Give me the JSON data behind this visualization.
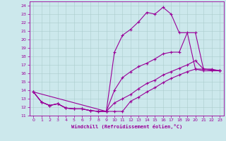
{
  "xlabel": "Windchill (Refroidissement éolien,°C)",
  "background_color": "#cce8ec",
  "grid_color": "#aacccc",
  "line_color": "#990099",
  "xlim": [
    -0.5,
    23.5
  ],
  "ylim": [
    11,
    24.5
  ],
  "xticks": [
    0,
    1,
    2,
    3,
    4,
    5,
    6,
    7,
    8,
    9,
    10,
    11,
    12,
    13,
    14,
    15,
    16,
    17,
    18,
    19,
    20,
    21,
    22,
    23
  ],
  "yticks": [
    11,
    12,
    13,
    14,
    15,
    16,
    17,
    18,
    19,
    20,
    21,
    22,
    23,
    24
  ],
  "curve1_x": [
    0,
    1,
    2,
    3,
    4,
    5,
    6,
    7,
    8,
    9,
    10,
    11,
    12,
    13,
    14,
    15,
    16,
    17,
    18,
    19,
    20,
    21,
    22,
    23
  ],
  "curve1_y": [
    13.8,
    12.6,
    12.2,
    12.4,
    11.9,
    11.8,
    11.8,
    11.6,
    11.5,
    11.5,
    11.5,
    11.5,
    12.7,
    13.2,
    13.8,
    14.3,
    14.9,
    15.4,
    15.8,
    16.2,
    16.5,
    16.3,
    16.3,
    16.3
  ],
  "curve2_x": [
    0,
    1,
    2,
    3,
    4,
    5,
    6,
    7,
    8,
    9,
    10,
    11,
    12,
    13,
    14,
    15,
    16,
    17,
    18,
    19,
    20,
    21,
    22,
    23
  ],
  "curve2_y": [
    13.8,
    12.6,
    12.2,
    12.4,
    11.9,
    11.8,
    11.8,
    11.6,
    11.5,
    11.5,
    12.5,
    13.0,
    13.5,
    14.2,
    14.8,
    15.2,
    15.8,
    16.2,
    16.6,
    17.0,
    17.5,
    16.5,
    16.4,
    16.3
  ],
  "curve3_x": [
    0,
    1,
    2,
    3,
    4,
    5,
    6,
    7,
    8,
    9,
    10,
    11,
    12,
    13,
    14,
    15,
    16,
    17,
    18,
    19,
    20,
    21,
    22,
    23
  ],
  "curve3_y": [
    13.8,
    12.6,
    12.2,
    12.4,
    11.9,
    11.8,
    11.8,
    11.6,
    11.5,
    11.5,
    14.0,
    15.5,
    16.2,
    16.8,
    17.2,
    17.7,
    18.3,
    18.5,
    18.5,
    20.8,
    16.5,
    16.5,
    16.4,
    16.3
  ],
  "curve4_x": [
    0,
    9,
    10,
    11,
    12,
    13,
    14,
    15,
    16,
    17,
    18,
    20,
    21,
    22,
    23
  ],
  "curve4_y": [
    13.8,
    11.5,
    18.5,
    20.5,
    21.2,
    22.1,
    23.2,
    23.0,
    23.8,
    23.0,
    20.8,
    20.8,
    16.5,
    16.5,
    16.3
  ]
}
